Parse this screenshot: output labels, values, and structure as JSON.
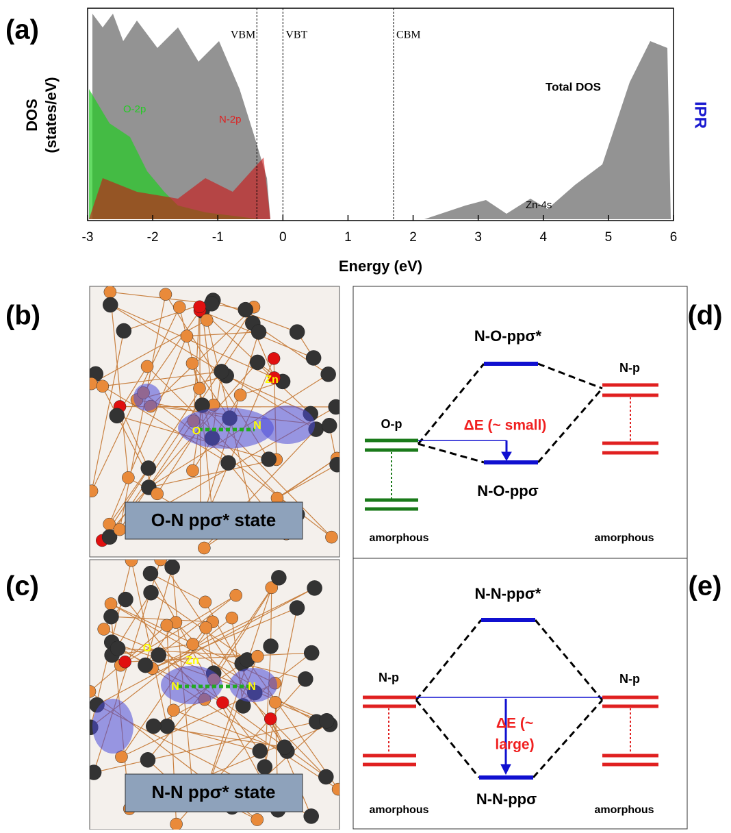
{
  "panel_a": {
    "label": "(a)",
    "y_label_1": "DOS",
    "y_label_2": "(states/eV)",
    "y2_label": "IPR",
    "x_label": "Energy (eV)",
    "xlim": [
      -3,
      6
    ],
    "xticks": [
      -3,
      -2,
      -1,
      0,
      1,
      2,
      3,
      4,
      5,
      6
    ],
    "ref_lines": [
      {
        "label": "VBM",
        "value": -0.4
      },
      {
        "label": "VBT",
        "value": 0
      },
      {
        "label": "CBM",
        "value": 1.7
      }
    ],
    "curve_labels": [
      "Total DOS",
      "O-2p",
      "N-2p",
      "Zn-4s"
    ]
  },
  "panel_b": {
    "label": "(b)",
    "caption": "O-N ppσ* state",
    "atoms": [
      "Zn",
      "O",
      "N"
    ]
  },
  "panel_c": {
    "label": "(c)",
    "caption": "N-N ppσ* state",
    "atoms": [
      "O",
      "Zn",
      "N",
      "N"
    ]
  },
  "panel_d": {
    "label": "(d)",
    "upper": "N-O-ppσ*",
    "lower": "N-O-ppσ",
    "left_level": "O-p",
    "right_level": "N-p",
    "delta": "ΔE (~ small)",
    "left_note": "amorphous",
    "right_note": "amorphous"
  },
  "panel_e": {
    "label": "(e)",
    "upper": "N-N-ppσ*",
    "lower": "N-N-ppσ",
    "left_level": "N-p",
    "right_level": "N-p",
    "delta_1": "ΔE (~",
    "delta_2": "large)",
    "left_note": "amorphous",
    "right_note": "amorphous"
  }
}
